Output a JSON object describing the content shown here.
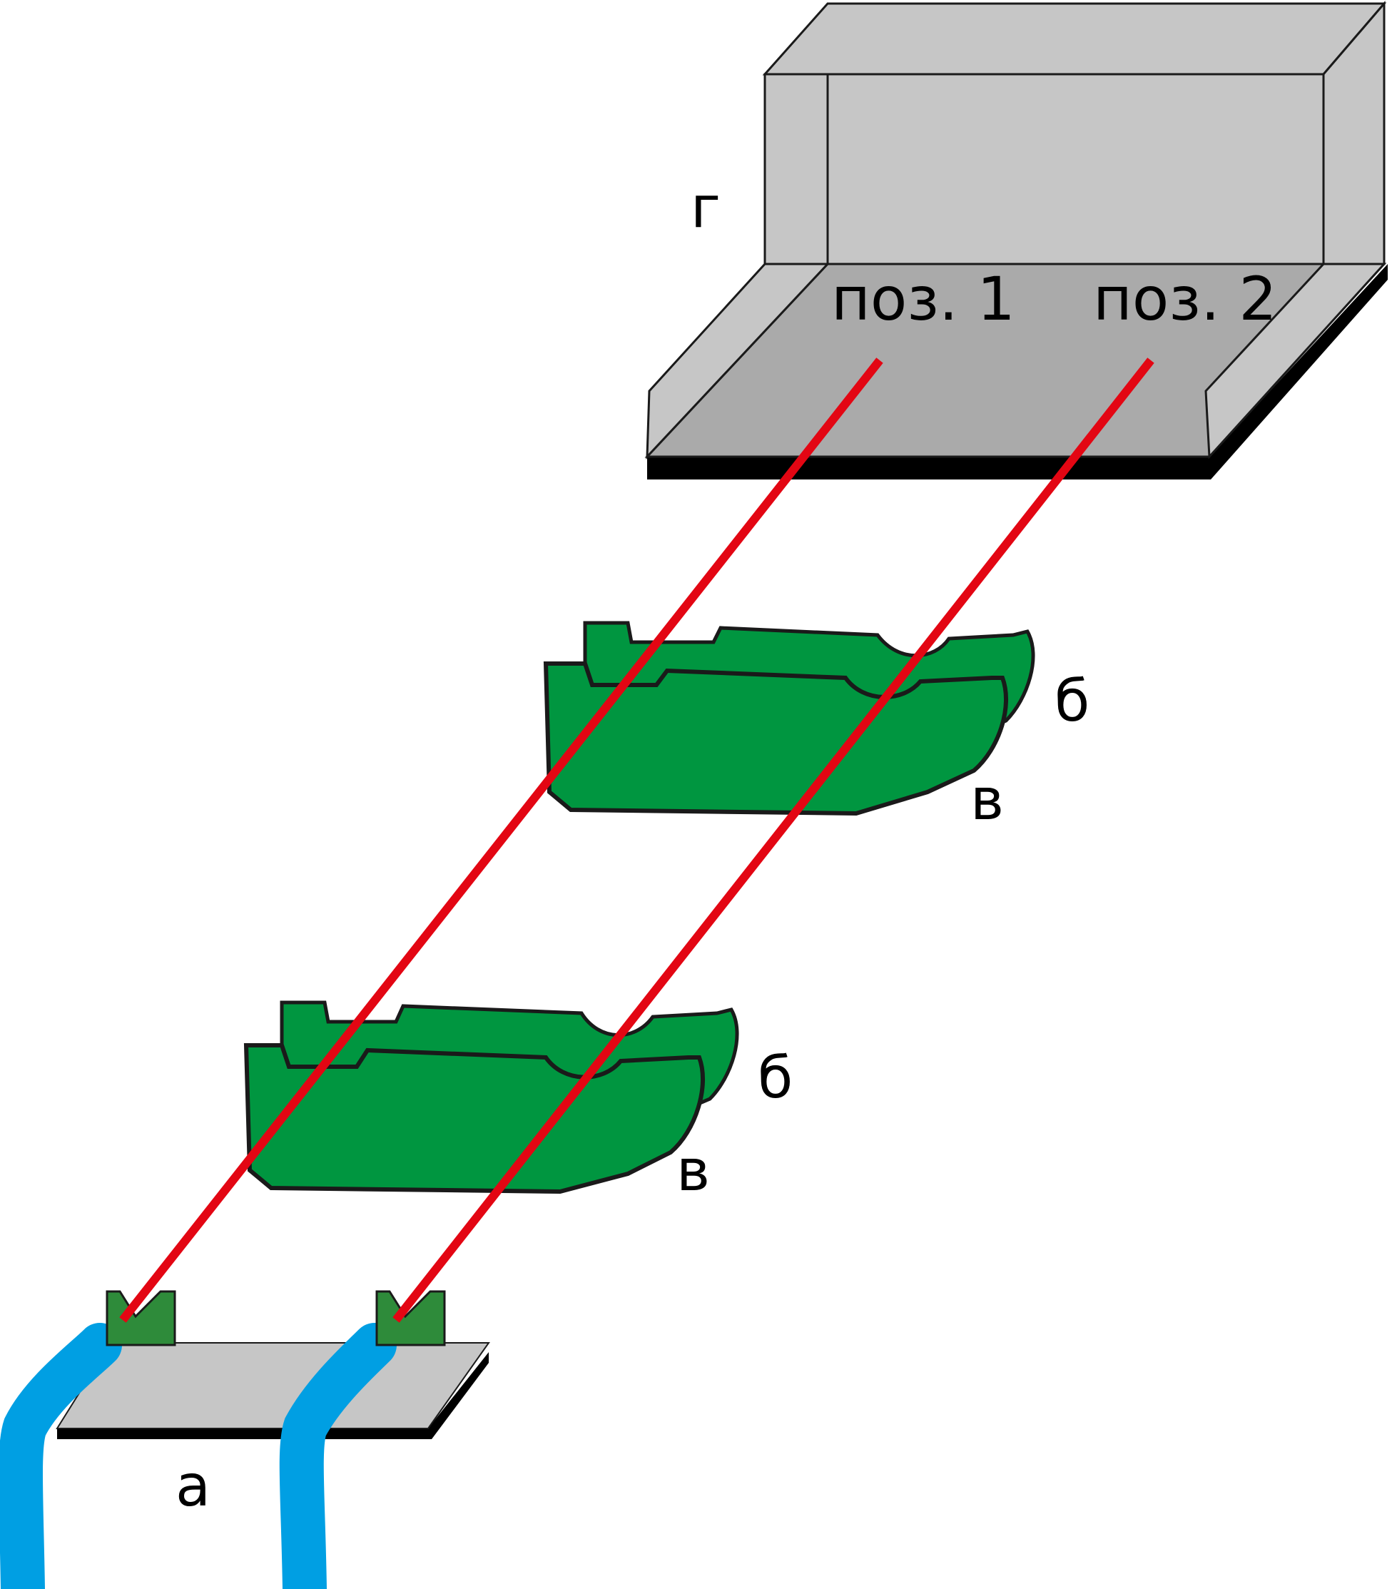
{
  "labels": {
    "screen": "г",
    "pos1": "поз. 1",
    "pos2": "поз. 2",
    "b_upper": "б",
    "v_upper": "в",
    "b_lower": "б",
    "v_lower": "в",
    "base": "а"
  },
  "colors": {
    "box_light": "#c6c6c6",
    "box_floor": "#aaaaaa",
    "outline": "#1a1a1a",
    "shadow": "#000000",
    "plate": "#009640",
    "laser": "#e30613",
    "fiber": "#009fe3",
    "base_plate": "#c6c6c6",
    "emitter": "#2e8b3a"
  }
}
